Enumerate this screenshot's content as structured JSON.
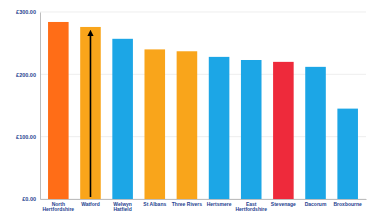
{
  "chart_data": {
    "type": "bar",
    "categories": [
      "North Hertfordshire",
      "Watford",
      "Welwyn Hatfield",
      "St Albans",
      "Three Rivers",
      "Hertsmere",
      "East Hertfordshire",
      "Stevenage",
      "Dacorum",
      "Broxbourne"
    ],
    "values": [
      284,
      276,
      257,
      240,
      237,
      228,
      223,
      220,
      212,
      145
    ],
    "colors": [
      "#ff6d17",
      "#f9a51b",
      "#1ca6e6",
      "#f9a51b",
      "#f9a51b",
      "#1ca6e6",
      "#1ca6e6",
      "#ee2a3b",
      "#1ca6e6",
      "#1ca6e6"
    ],
    "ylim": [
      0,
      300
    ],
    "yticks": [
      {
        "value": 0,
        "label": "£0.00"
      },
      {
        "value": 100,
        "label": "£100.00"
      },
      {
        "value": 200,
        "label": "£200.00"
      },
      {
        "value": 300,
        "label": "£300.00"
      }
    ],
    "grid": true
  }
}
